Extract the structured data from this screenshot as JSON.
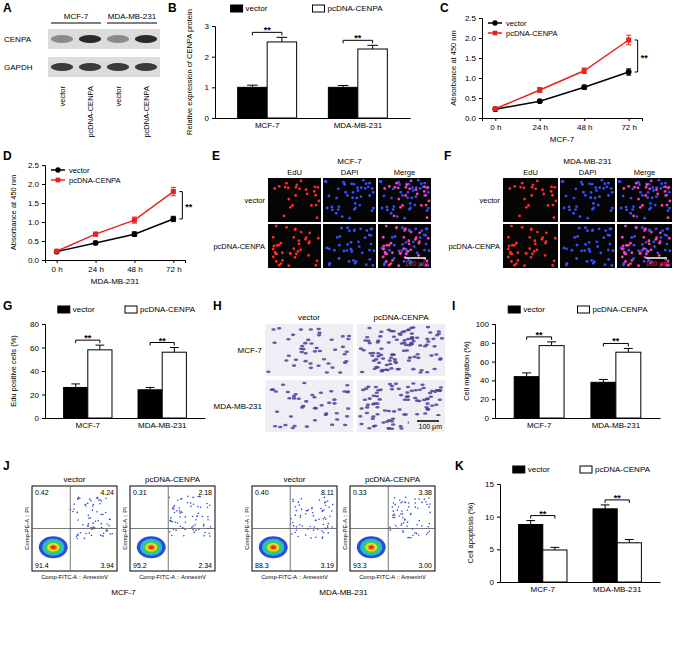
{
  "chart_data": [
    {
      "type": "blot",
      "panel": "A",
      "groups": [
        "MCF-7",
        "MDA-MB-231"
      ],
      "rows": [
        "CENPA",
        "GAPDH"
      ],
      "lanes": [
        "vector",
        "pcDNA-CENPA",
        "vector",
        "pcDNA-CENPA"
      ]
    },
    {
      "type": "bar",
      "panel": "B",
      "y_label": "Relative expression of CENPA protein",
      "categories": [
        "MCF-7",
        "MDA-MB-231"
      ],
      "series": [
        {
          "name": "vector",
          "color": "#000000",
          "values": [
            1.0,
            1.0
          ],
          "errors": [
            0.07,
            0.06
          ]
        },
        {
          "name": "pcDNA-CENPA",
          "color": "#ffffff",
          "values": [
            2.48,
            2.25
          ],
          "errors": [
            0.15,
            0.12
          ]
        }
      ],
      "ylim": [
        0,
        3
      ],
      "yticks": [
        0,
        1,
        2,
        3
      ],
      "annotations": [
        "**",
        "**"
      ],
      "legend": "top"
    },
    {
      "type": "line",
      "panel": "C",
      "x_label": "MCF-7",
      "y_label": "Absorbance at 450 nm",
      "categories": [
        "0 h",
        "24 h",
        "48 h",
        "72 h"
      ],
      "series": [
        {
          "name": "vector",
          "color": "#000000",
          "marker": "circle",
          "values": [
            0.22,
            0.42,
            0.77,
            1.15
          ],
          "errors": [
            0.02,
            0.03,
            0.05,
            0.08
          ]
        },
        {
          "name": "pcDNA-CENPA",
          "color": "#e8231f",
          "marker": "square",
          "values": [
            0.23,
            0.7,
            1.18,
            1.95
          ],
          "errors": [
            0.02,
            0.06,
            0.07,
            0.12
          ]
        }
      ],
      "ylim": [
        0,
        2.5
      ],
      "yticks": [
        {
          "value": 0,
          "label": "0.0"
        },
        {
          "value": 0.5,
          "label": "0.5"
        },
        {
          "value": 1,
          "label": "1.0"
        },
        {
          "value": 1.5,
          "label": "1.5"
        },
        {
          "value": 2,
          "label": "2.0"
        },
        {
          "value": 2.5,
          "label": "2.5"
        }
      ],
      "annotations": [
        "**"
      ],
      "legend": "top left"
    },
    {
      "type": "line",
      "panel": "D",
      "x_label": "MDA-MB-231",
      "y_label": "Absorbance at 450 nm",
      "categories": [
        "0 h",
        "24 h",
        "48 h",
        "72 h"
      ],
      "series": [
        {
          "name": "vector",
          "color": "#000000",
          "marker": "circle",
          "values": [
            0.22,
            0.45,
            0.68,
            1.08
          ],
          "errors": [
            0.02,
            0.04,
            0.06,
            0.07
          ]
        },
        {
          "name": "pcDNA-CENPA",
          "color": "#e8231f",
          "marker": "square",
          "values": [
            0.23,
            0.68,
            1.05,
            1.8
          ],
          "errors": [
            0.02,
            0.05,
            0.08,
            0.11
          ]
        }
      ],
      "ylim": [
        0,
        2.5
      ],
      "yticks": [
        {
          "value": 0,
          "label": "0.0"
        },
        {
          "value": 0.5,
          "label": "0.5"
        },
        {
          "value": 1,
          "label": "1.0"
        },
        {
          "value": 1.5,
          "label": "1.5"
        },
        {
          "value": 2,
          "label": "2.0"
        },
        {
          "value": 2.5,
          "label": "2.5"
        }
      ],
      "annotations": [
        "**"
      ],
      "legend": "top left"
    },
    {
      "type": "micrograph",
      "panel": "E",
      "title": "MCF-7",
      "columns": [
        "EdU",
        "DAPI",
        "Merge"
      ],
      "rows": [
        "vector",
        "pcDNA-CENPA"
      ],
      "scale_bar": "100 μm"
    },
    {
      "type": "micrograph",
      "panel": "F",
      "title": "MDA-MB-231",
      "columns": [
        "EdU",
        "DAPI",
        "Merge"
      ],
      "rows": [
        "vector",
        "pcDNA-CENPA"
      ],
      "scale_bar": "100 μm"
    },
    {
      "type": "bar",
      "panel": "G",
      "y_label": "Edu positive cells (%)",
      "categories": [
        "MCF-7",
        "MDA-MB-231"
      ],
      "series": [
        {
          "name": "vector",
          "color": "#000000",
          "values": [
            26,
            24
          ],
          "errors": [
            3,
            2
          ]
        },
        {
          "name": "pcDNA-CENPA",
          "color": "#ffffff",
          "values": [
            58,
            56
          ],
          "errors": [
            4,
            4
          ]
        }
      ],
      "ylim": [
        0,
        80
      ],
      "yticks": [
        0,
        20,
        40,
        60,
        80
      ],
      "annotations": [
        "**",
        "**"
      ],
      "legend": "top"
    },
    {
      "type": "transwell",
      "panel": "H",
      "columns": [
        "vector",
        "pcDNA-CENPA"
      ],
      "rows": [
        "MCF-7",
        "MDA-MB-231"
      ],
      "scale_bar": "100 μm"
    },
    {
      "type": "bar",
      "panel": "I",
      "y_label": "Cell migration (%)",
      "categories": [
        "MCF-7",
        "MDA-MB-231"
      ],
      "series": [
        {
          "name": "vector",
          "color": "#000000",
          "values": [
            44,
            38
          ],
          "errors": [
            4,
            3
          ]
        },
        {
          "name": "pcDNA-CENPA",
          "color": "#ffffff",
          "values": [
            77,
            70
          ],
          "errors": [
            4,
            4
          ]
        }
      ],
      "ylim": [
        0,
        100
      ],
      "yticks": [
        0,
        20,
        40,
        60,
        80,
        100
      ],
      "annotations": [
        "**",
        "**"
      ],
      "legend": "top"
    },
    {
      "type": "flow",
      "panel": "J",
      "x_label": "Comp-FITC-A :: AnnexinV",
      "y_label": "Comp-PE-A :: PI",
      "groups": [
        {
          "name": "MCF-7",
          "plots": [
            {
              "name": "vector",
              "quadrants": [
                "0.42",
                "4.24",
                "91.4",
                "3.94"
              ]
            },
            {
              "name": "pcDNA-CENPA",
              "quadrants": [
                "0.31",
                "2.18",
                "95.2",
                "2.34"
              ]
            }
          ]
        },
        {
          "name": "MDA-MB-231",
          "plots": [
            {
              "name": "vector",
              "quadrants": [
                "0.40",
                "8.11",
                "88.3",
                "3.19"
              ]
            },
            {
              "name": "pcDNA-CENPA",
              "quadrants": [
                "0.33",
                "3.38",
                "93.3",
                "3.00"
              ]
            }
          ]
        }
      ]
    },
    {
      "type": "bar",
      "panel": "K",
      "y_label": "Cell apoptosis (%)",
      "categories": [
        "MCF-7",
        "MDA-MB-231"
      ],
      "series": [
        {
          "name": "vector",
          "color": "#000000",
          "values": [
            8.8,
            11.2
          ],
          "errors": [
            0.6,
            0.6
          ]
        },
        {
          "name": "pcDNA-CENPA",
          "color": "#ffffff",
          "values": [
            4.9,
            6.0
          ],
          "errors": [
            0.4,
            0.5
          ]
        }
      ],
      "ylim": [
        0,
        15
      ],
      "yticks": [
        0,
        5,
        10,
        15
      ],
      "annotations": [
        "**",
        "**"
      ],
      "legend": "top"
    }
  ]
}
